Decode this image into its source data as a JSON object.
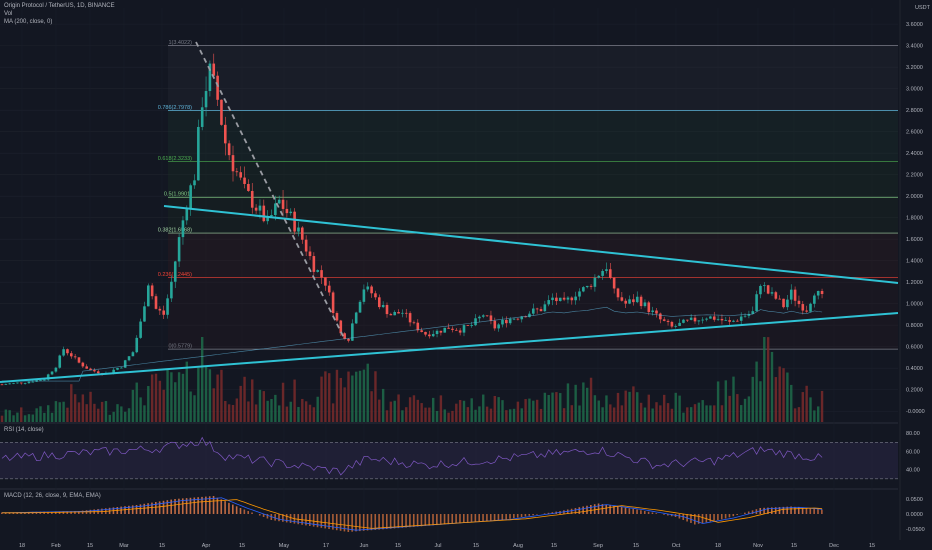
{
  "header": {
    "title": "Origin Protocol / TetherUS, 1D, BINANCE",
    "vol": "Vol",
    "ma": "MA (200, close, 0)",
    "currency": "USDT"
  },
  "rsi_title": "RSI (14, close)",
  "macd_title": "MACD (12, 26, close, 9, EMA, EMA)",
  "current_price": "1.0",
  "chart_data": [
    {
      "type": "candlestick",
      "title": "Origin Protocol / TetherUS, 1D, BINANCE",
      "currency": "USDT",
      "x_ticks": [
        "18",
        "Feb",
        "15",
        "Mar",
        "15",
        "Apr",
        "15",
        "May",
        "17",
        "Jun",
        "15",
        "Jul",
        "15",
        "Aug",
        "15",
        "Sep",
        "15",
        "Oct",
        "18",
        "Nov",
        "15",
        "Dec",
        "15"
      ],
      "y_ticks": [
        "3.6000",
        "3.4000",
        "3.2000",
        "3.0000",
        "2.8000",
        "2.6000",
        "2.4000",
        "2.2000",
        "2.0000",
        "1.8000",
        "1.6000",
        "1.4000",
        "1.2000",
        "1.0000",
        "0.8000",
        "0.6000",
        "0.4000",
        "0.2000",
        "-0.0000"
      ],
      "ylim": [
        -0.1,
        3.75
      ],
      "fib_levels": [
        {
          "label": "1(3.4022)",
          "value": 3.4022,
          "color": "#787b86"
        },
        {
          "label": "0.786(2.7978)",
          "value": 2.7978,
          "color": "#5fb4d9"
        },
        {
          "label": "0.618(2.3233)",
          "value": 2.3233,
          "color": "#4caf50"
        },
        {
          "label": "0.5(1.9901)",
          "value": 1.9901,
          "color": "#81c784"
        },
        {
          "label": "0.382(1.6568)",
          "value": 1.6568,
          "color": "#a5d6a7"
        },
        {
          "label": "0.236(1.2445)",
          "value": 1.2445,
          "color": "#f44336"
        },
        {
          "label": "0(0.5779)",
          "value": 0.5779,
          "color": "#787b86"
        }
      ],
      "price_path": [
        [
          0,
          0.25
        ],
        [
          6,
          0.27
        ],
        [
          11,
          0.3
        ],
        [
          14,
          0.42
        ],
        [
          16,
          0.58
        ],
        [
          18,
          0.52
        ],
        [
          20,
          0.45
        ],
        [
          23,
          0.38
        ],
        [
          27,
          0.35
        ],
        [
          31,
          0.42
        ],
        [
          34,
          0.55
        ],
        [
          36,
          0.82
        ],
        [
          38,
          1.2
        ],
        [
          40,
          0.95
        ],
        [
          42,
          0.9
        ],
        [
          44,
          1.2
        ],
        [
          46,
          1.6
        ],
        [
          48,
          1.95
        ],
        [
          50,
          2.2
        ],
        [
          52,
          2.9
        ],
        [
          54,
          3.15
        ],
        [
          56,
          2.9
        ],
        [
          58,
          2.5
        ],
        [
          60,
          2.3
        ],
        [
          63,
          2.05
        ],
        [
          66,
          1.9
        ],
        [
          69,
          1.75
        ],
        [
          72,
          1.95
        ],
        [
          75,
          1.8
        ],
        [
          78,
          1.6
        ],
        [
          81,
          1.35
        ],
        [
          84,
          1.2
        ],
        [
          86,
          0.95
        ],
        [
          88,
          0.72
        ],
        [
          90,
          0.68
        ],
        [
          92,
          0.95
        ],
        [
          94,
          1.15
        ],
        [
          96,
          1.1
        ],
        [
          98,
          1.0
        ],
        [
          101,
          0.9
        ],
        [
          104,
          0.92
        ],
        [
          107,
          0.8
        ],
        [
          110,
          0.72
        ],
        [
          113,
          0.74
        ],
        [
          116,
          0.78
        ],
        [
          119,
          0.76
        ],
        [
          122,
          0.8
        ],
        [
          125,
          0.9
        ],
        [
          128,
          0.78
        ],
        [
          131,
          0.85
        ],
        [
          134,
          0.88
        ],
        [
          137,
          0.92
        ],
        [
          140,
          0.95
        ],
        [
          143,
          1.05
        ],
        [
          146,
          1.0
        ],
        [
          149,
          1.1
        ],
        [
          152,
          1.15
        ],
        [
          155,
          1.28
        ],
        [
          157,
          1.35
        ],
        [
          159,
          1.1
        ],
        [
          162,
          1.0
        ],
        [
          165,
          1.05
        ],
        [
          168,
          0.95
        ],
        [
          171,
          0.85
        ],
        [
          174,
          0.78
        ],
        [
          177,
          0.82
        ],
        [
          180,
          0.85
        ],
        [
          183,
          0.88
        ],
        [
          186,
          0.86
        ],
        [
          189,
          0.82
        ],
        [
          192,
          0.88
        ],
        [
          195,
          0.92
        ],
        [
          197,
          1.2
        ],
        [
          199,
          1.1
        ],
        [
          201,
          1.05
        ],
        [
          203,
          0.98
        ],
        [
          205,
          1.1
        ],
        [
          207,
          1.0
        ],
        [
          209,
          0.95
        ],
        [
          211,
          1.12
        ],
        [
          213,
          1.05
        ]
      ],
      "volume_path": [
        [
          0,
          0.12
        ],
        [
          10,
          0.15
        ],
        [
          18,
          0.35
        ],
        [
          28,
          0.2
        ],
        [
          38,
          0.45
        ],
        [
          48,
          0.55
        ],
        [
          52,
          0.95
        ],
        [
          58,
          0.5
        ],
        [
          68,
          0.35
        ],
        [
          78,
          0.4
        ],
        [
          88,
          0.5
        ],
        [
          92,
          0.85
        ],
        [
          100,
          0.3
        ],
        [
          120,
          0.25
        ],
        [
          140,
          0.3
        ],
        [
          155,
          0.45
        ],
        [
          160,
          0.35
        ],
        [
          180,
          0.25
        ],
        [
          195,
          0.55
        ],
        [
          197,
          0.95
        ],
        [
          205,
          0.4
        ],
        [
          213,
          0.3
        ]
      ],
      "rsi_path": [
        [
          0,
          52
        ],
        [
          20,
          58
        ],
        [
          40,
          63
        ],
        [
          52,
          72
        ],
        [
          58,
          55
        ],
        [
          70,
          48
        ],
        [
          88,
          38
        ],
        [
          95,
          52
        ],
        [
          110,
          45
        ],
        [
          130,
          52
        ],
        [
          155,
          62
        ],
        [
          170,
          45
        ],
        [
          185,
          50
        ],
        [
          197,
          62
        ],
        [
          213,
          52
        ]
      ],
      "macd_path": [
        [
          0,
          0.005
        ],
        [
          20,
          0.01
        ],
        [
          35,
          0.03
        ],
        [
          45,
          0.05
        ],
        [
          55,
          0.06
        ],
        [
          62,
          0.02
        ],
        [
          70,
          -0.02
        ],
        [
          80,
          -0.04
        ],
        [
          90,
          -0.06
        ],
        [
          100,
          -0.05
        ],
        [
          115,
          -0.035
        ],
        [
          130,
          -0.02
        ],
        [
          145,
          0.01
        ],
        [
          155,
          0.035
        ],
        [
          165,
          0.015
        ],
        [
          175,
          -0.01
        ],
        [
          180,
          -0.035
        ],
        [
          188,
          -0.015
        ],
        [
          197,
          0.02
        ],
        [
          205,
          0.025
        ],
        [
          213,
          0.015
        ]
      ]
    }
  ]
}
